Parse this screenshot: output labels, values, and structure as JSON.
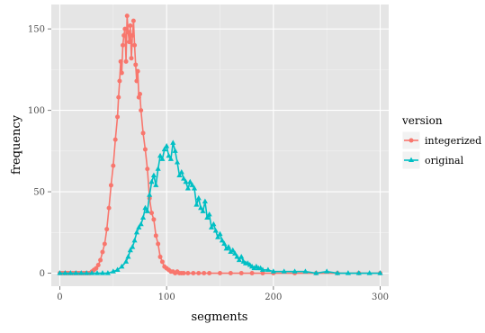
{
  "chart_data": {
    "type": "line",
    "title": "",
    "xlabel": "segments",
    "ylabel": "frequency",
    "xlim": [
      -8,
      308
    ],
    "ylim": [
      -8,
      165
    ],
    "xticks": [
      0,
      100,
      200,
      300
    ],
    "yticks": [
      0,
      50,
      100,
      150
    ],
    "grid": true,
    "legend": {
      "title": "version",
      "position": "right",
      "entries": [
        "integerized",
        "original"
      ]
    },
    "series": [
      {
        "name": "integerized",
        "color": "#F8766D",
        "marker": "circle",
        "x": [
          0,
          2,
          4,
          6,
          8,
          10,
          12,
          14,
          16,
          18,
          20,
          22,
          24,
          26,
          28,
          30,
          32,
          34,
          36,
          38,
          40,
          42,
          44,
          46,
          48,
          50,
          52,
          54,
          55,
          56,
          57,
          58,
          59,
          60,
          61,
          62,
          63,
          64,
          65,
          66,
          67,
          68,
          69,
          70,
          71,
          72,
          73,
          74,
          75,
          76,
          78,
          80,
          82,
          84,
          86,
          88,
          90,
          92,
          94,
          96,
          98,
          100,
          102,
          104,
          106,
          108,
          110,
          112,
          114,
          116,
          120,
          125,
          130,
          135,
          140,
          150,
          160,
          170,
          180,
          190,
          200,
          220,
          240,
          260,
          280,
          300
        ],
        "y": [
          0,
          0,
          0,
          0,
          0,
          0,
          0,
          0,
          0,
          0,
          0,
          0,
          0,
          0,
          0,
          1,
          2,
          3,
          5,
          8,
          13,
          18,
          27,
          40,
          54,
          66,
          82,
          96,
          108,
          118,
          130,
          123,
          140,
          146,
          150,
          130,
          158,
          148,
          142,
          152,
          132,
          146,
          155,
          140,
          128,
          118,
          124,
          108,
          110,
          100,
          86,
          76,
          64,
          46,
          37,
          33,
          23,
          18,
          10,
          7,
          4,
          3,
          2,
          1,
          1,
          0,
          1,
          0,
          0,
          0,
          0,
          0,
          0,
          0,
          0,
          0,
          0,
          0,
          0,
          0,
          0,
          0,
          0,
          0,
          0,
          0
        ]
      },
      {
        "name": "original",
        "color": "#00BFC4",
        "marker": "triangle",
        "x": [
          0,
          5,
          10,
          15,
          20,
          25,
          30,
          35,
          40,
          45,
          50,
          54,
          58,
          62,
          64,
          66,
          68,
          70,
          72,
          74,
          76,
          78,
          80,
          82,
          84,
          86,
          88,
          90,
          92,
          94,
          96,
          98,
          100,
          102,
          104,
          106,
          108,
          110,
          112,
          114,
          116,
          118,
          120,
          122,
          124,
          126,
          128,
          130,
          132,
          134,
          136,
          138,
          140,
          142,
          144,
          146,
          148,
          150,
          152,
          154,
          156,
          158,
          160,
          162,
          164,
          166,
          168,
          170,
          172,
          174,
          176,
          178,
          180,
          182,
          184,
          186,
          188,
          190,
          195,
          200,
          210,
          220,
          230,
          240,
          250,
          260,
          270,
          280,
          290,
          300
        ],
        "y": [
          0,
          0,
          0,
          0,
          0,
          0,
          0,
          0,
          0,
          0,
          1,
          2,
          4,
          7,
          10,
          14,
          16,
          20,
          25,
          28,
          30,
          34,
          40,
          38,
          48,
          56,
          60,
          54,
          64,
          72,
          70,
          76,
          78,
          72,
          70,
          80,
          75,
          68,
          60,
          62,
          58,
          56,
          52,
          56,
          54,
          52,
          42,
          46,
          40,
          38,
          44,
          34,
          36,
          28,
          30,
          26,
          22,
          24,
          20,
          18,
          15,
          16,
          13,
          14,
          12,
          10,
          8,
          10,
          7,
          6,
          6,
          5,
          4,
          3,
          4,
          3,
          3,
          2,
          2,
          1,
          1,
          1,
          1,
          0,
          1,
          0,
          0,
          0,
          0,
          0
        ]
      }
    ]
  }
}
